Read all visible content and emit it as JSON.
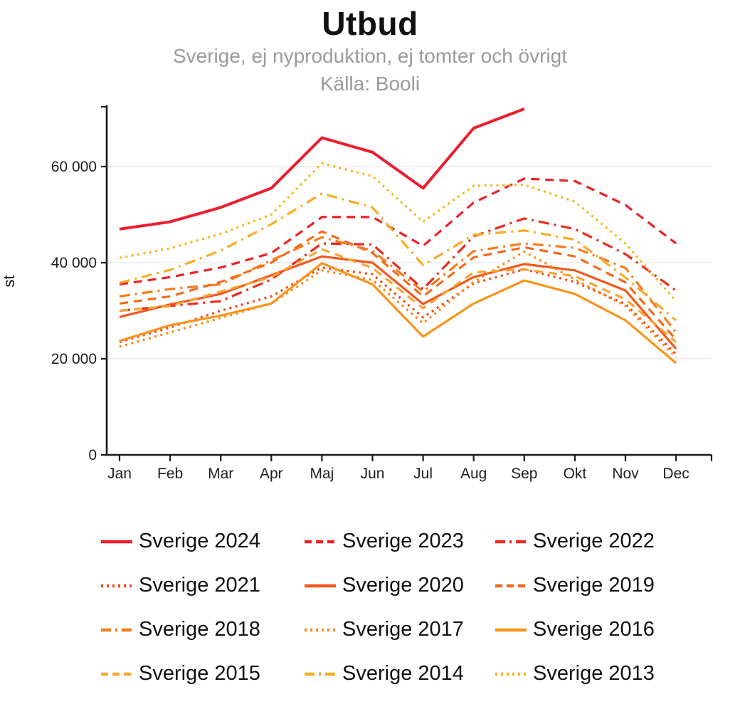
{
  "header": {
    "title": "Utbud",
    "subtitle1": "Sverige, ej nyproduktion, ej tomter och övrigt",
    "subtitle2": "Källa: Booli"
  },
  "chart_data": {
    "type": "line",
    "title": "Utbud",
    "subtitle": "Sverige, ej nyproduktion, ej tomter och övrigt — Källa: Booli",
    "xlabel": "",
    "ylabel": "st",
    "ylim": [
      0,
      73000
    ],
    "grid": true,
    "legend_position": "bottom",
    "x_categories": [
      "Jan",
      "Feb",
      "Mar",
      "Apr",
      "Maj",
      "Jun",
      "Jul",
      "Aug",
      "Sep",
      "Okt",
      "Nov",
      "Dec"
    ],
    "y_ticks": [
      {
        "value": 0,
        "label": "0"
      },
      {
        "value": 20000,
        "label": "20 000"
      },
      {
        "value": 40000,
        "label": "40 000"
      },
      {
        "value": 60000,
        "label": "60 000"
      }
    ],
    "series": [
      {
        "name": "Sverige 2024",
        "color": "#ee1c2e",
        "dash": "solid",
        "width": 4,
        "values": [
          47000,
          48500,
          51500,
          55500,
          66000,
          63000,
          55500,
          68000,
          72000,
          null,
          null,
          null
        ]
      },
      {
        "name": "Sverige 2023",
        "color": "#ed2127",
        "dash": "dashed",
        "width": 3.2,
        "values": [
          35500,
          37000,
          39000,
          42000,
          49500,
          49500,
          43500,
          52500,
          57500,
          57000,
          52000,
          44000
        ]
      },
      {
        "name": "Sverige 2022",
        "color": "#ea2b1f",
        "dash": "dashdot",
        "width": 3.2,
        "values": [
          30000,
          31000,
          32000,
          36500,
          44000,
          43800,
          34500,
          45500,
          49200,
          47000,
          41800,
          34200
        ]
      },
      {
        "name": "Sverige 2021",
        "color": "#f24a1f",
        "dash": "dotted",
        "width": 3.2,
        "values": [
          23500,
          26500,
          30000,
          33000,
          39000,
          37600,
          28600,
          35700,
          38600,
          36000,
          31400,
          21000
        ]
      },
      {
        "name": "Sverige 2020",
        "color": "#f2581d",
        "dash": "solid",
        "width": 3.2,
        "values": [
          28700,
          31300,
          33500,
          37400,
          41300,
          40000,
          31400,
          37000,
          39700,
          38400,
          34200,
          22100
        ]
      },
      {
        "name": "Sverige 2019",
        "color": "#f46a1d",
        "dash": "dashed",
        "width": 3.2,
        "values": [
          31500,
          33000,
          36000,
          40000,
          46500,
          42000,
          33000,
          41100,
          43200,
          41300,
          35900,
          24000
        ]
      },
      {
        "name": "Sverige 2018",
        "color": "#f67c1d",
        "dash": "dashdot",
        "width": 3.2,
        "values": [
          33000,
          34500,
          35500,
          40500,
          45300,
          42500,
          34000,
          42400,
          44000,
          43100,
          38900,
          25500
        ]
      },
      {
        "name": "Sverige 2017",
        "color": "#f88b1c",
        "dash": "dotted",
        "width": 3.2,
        "values": [
          22500,
          25500,
          28500,
          31500,
          38400,
          36400,
          27400,
          36000,
          42300,
          36500,
          31000,
          20300
        ]
      },
      {
        "name": "Sverige 2016",
        "color": "#f8941c",
        "dash": "solid",
        "width": 3.2,
        "values": [
          23700,
          27000,
          29000,
          31500,
          39900,
          35500,
          24600,
          31500,
          36300,
          33500,
          28000,
          19100
        ]
      },
      {
        "name": "Sverige 2015",
        "color": "#f9a433",
        "dash": "dashed",
        "width": 3.2,
        "values": [
          30000,
          31000,
          34000,
          37000,
          42800,
          38900,
          30500,
          38000,
          38600,
          37200,
          32400,
          23500
        ]
      },
      {
        "name": "Sverige 2014",
        "color": "#f9ac26",
        "dash": "dashdot",
        "width": 3.2,
        "values": [
          35800,
          38500,
          42500,
          48000,
          54400,
          51500,
          39500,
          45800,
          46700,
          44800,
          36900,
          28000
        ]
      },
      {
        "name": "Sverige 2013",
        "color": "#fab41f",
        "dash": "dotted",
        "width": 3.2,
        "values": [
          41000,
          43000,
          46000,
          50000,
          60700,
          58000,
          48500,
          56000,
          56200,
          52700,
          44000,
          32000
        ]
      }
    ]
  },
  "colors": {
    "axis": "#1a1a1a",
    "grid": "#ececec",
    "tick_text": "#1f1f1f",
    "subtitle": "#9a9a9a"
  }
}
